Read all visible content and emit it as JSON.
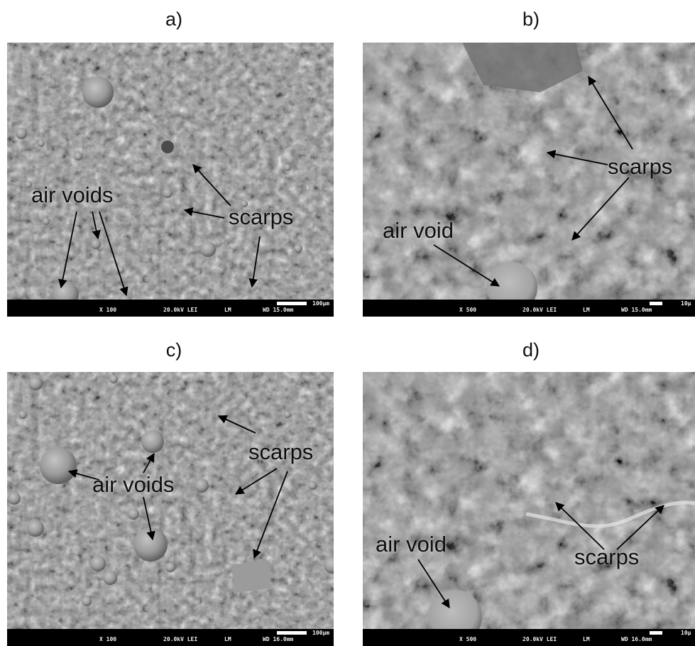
{
  "panels": [
    {
      "letter": "a)",
      "labels": [
        "air voids",
        "scarps"
      ],
      "info": {
        "magnification": "X 100",
        "voltage": "20.0kV LEI",
        "mode": "LM",
        "wd": "WD 15.0mm",
        "scale": "100µm"
      }
    },
    {
      "letter": "b)",
      "labels": [
        "scarps",
        "air void"
      ],
      "info": {
        "magnification": "X 500",
        "voltage": "20.0kV LEI",
        "mode": "LM",
        "wd": "WD 15.0mm",
        "scale": "10µ"
      }
    },
    {
      "letter": "c)",
      "labels": [
        "air voids",
        "scarps"
      ],
      "info": {
        "magnification": "X 100",
        "voltage": "20.0kV LEI",
        "mode": "LM",
        "wd": "WD 16.0mm",
        "scale": "100µm"
      }
    },
    {
      "letter": "d)",
      "labels": [
        "air void",
        "scarps"
      ],
      "info": {
        "magnification": "X 500",
        "voltage": "20.0kV LEI",
        "mode": "LM",
        "wd": "WD 16.0mm",
        "scale": "10µ"
      }
    }
  ]
}
